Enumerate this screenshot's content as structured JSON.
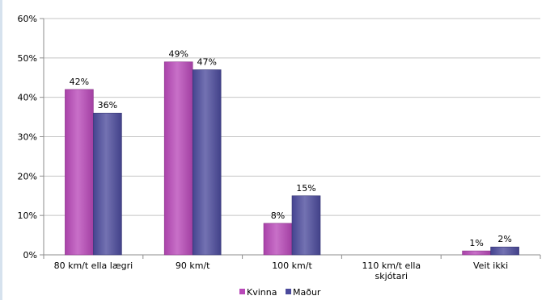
{
  "chart_data": {
    "type": "bar",
    "title": "",
    "xlabel": "",
    "ylabel": "",
    "categories": [
      [
        "80 km/t ella lægri"
      ],
      [
        "90 km/t"
      ],
      [
        "100 km/t"
      ],
      [
        "110 km/t ella",
        "skjótari"
      ],
      [
        "Veit ikki"
      ]
    ],
    "ylim": [
      0,
      60
    ],
    "yticks": [
      0,
      10,
      20,
      30,
      40,
      50,
      60
    ],
    "y_tick_labels": [
      "0%",
      "10%",
      "20%",
      "30%",
      "40%",
      "50%",
      "60%"
    ],
    "grid": true,
    "legend_position": "bottom",
    "series": [
      {
        "name": "Kvinna",
        "color": "#b848b8",
        "values": [
          42,
          49,
          8,
          0,
          1
        ],
        "labels": [
          "42%",
          "49%",
          "8%",
          "",
          "1%"
        ]
      },
      {
        "name": "Maður",
        "color": "#4b4a9c",
        "values": [
          36,
          47,
          15,
          0,
          2
        ],
        "labels": [
          "36%",
          "47%",
          "15%",
          "",
          "2%"
        ]
      }
    ]
  }
}
